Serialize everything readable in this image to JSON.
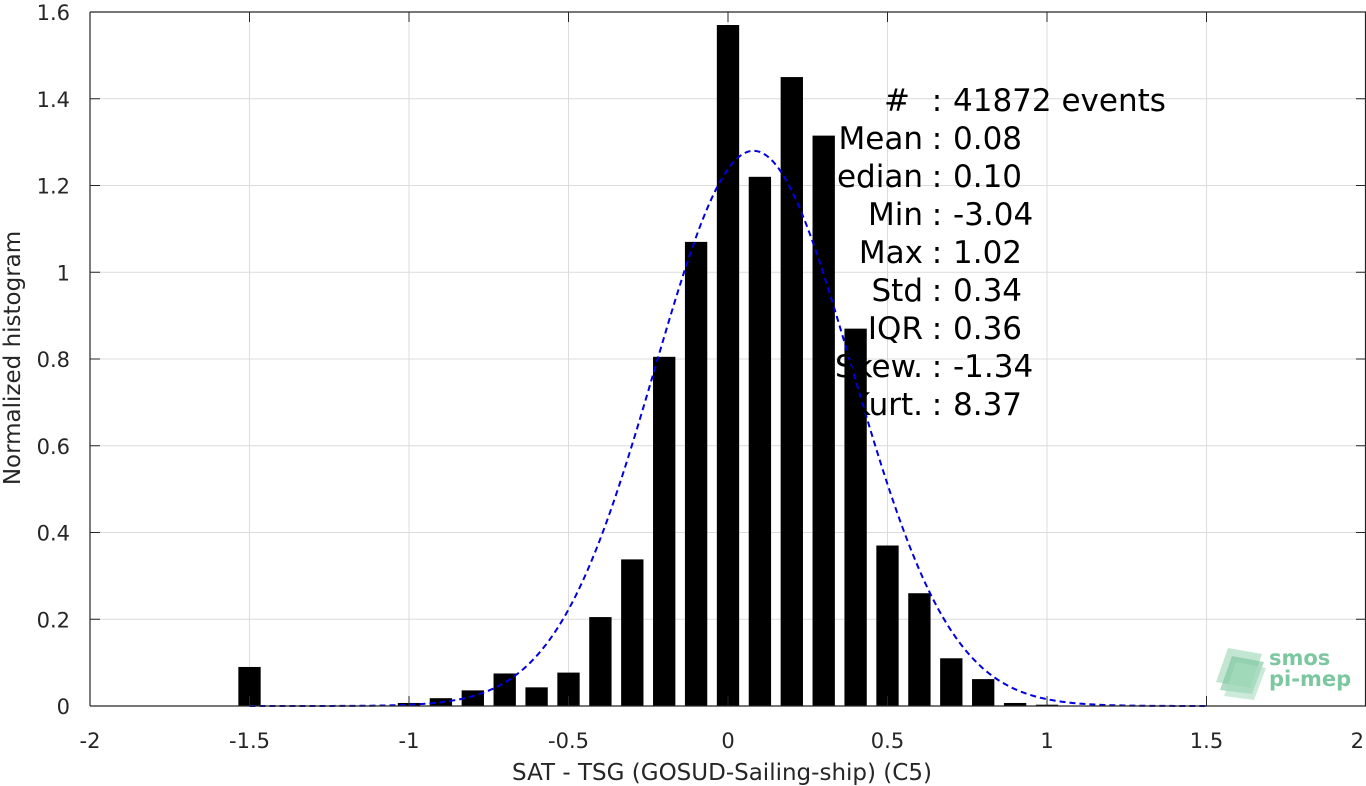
{
  "chart_data": {
    "type": "bar",
    "xlabel": "SAT - TSG (GOSUD-Sailing-ship) (C5)",
    "ylabel": "Normalized histogram",
    "xlim": [
      -2,
      2
    ],
    "ylim": [
      0,
      1.6
    ],
    "xticks": [
      -2,
      -1.5,
      -1,
      -0.5,
      0,
      0.5,
      1,
      1.5,
      2
    ],
    "xtick_labels": [
      "-2",
      "-1.5",
      "-1",
      "-0.5",
      "0",
      "0.5",
      "1",
      "1.5",
      "2"
    ],
    "yticks": [
      0,
      0.2,
      0.4,
      0.6,
      0.8,
      1,
      1.2,
      1.4,
      1.6
    ],
    "ytick_labels": [
      "0",
      "0.2",
      "0.4",
      "0.6",
      "0.8",
      "1",
      "1.2",
      "1.4",
      "1.6"
    ],
    "grid": true,
    "bin_width": 0.1,
    "bar_width": 0.07,
    "bars": [
      {
        "x": -1.5,
        "y": 0.09
      },
      {
        "x": -1.0,
        "y": 0.007
      },
      {
        "x": -0.9,
        "y": 0.018
      },
      {
        "x": -0.8,
        "y": 0.036
      },
      {
        "x": -0.7,
        "y": 0.075
      },
      {
        "x": -0.6,
        "y": 0.043
      },
      {
        "x": -0.5,
        "y": 0.077
      },
      {
        "x": -0.4,
        "y": 0.205
      },
      {
        "x": -0.3,
        "y": 0.338
      },
      {
        "x": -0.2,
        "y": 0.805
      },
      {
        "x": -0.1,
        "y": 1.07
      },
      {
        "x": 0.0,
        "y": 1.57
      },
      {
        "x": 0.1,
        "y": 1.22
      },
      {
        "x": 0.2,
        "y": 1.45
      },
      {
        "x": 0.3,
        "y": 1.315
      },
      {
        "x": 0.4,
        "y": 0.87
      },
      {
        "x": 0.5,
        "y": 0.37
      },
      {
        "x": 0.6,
        "y": 0.26
      },
      {
        "x": 0.7,
        "y": 0.11
      },
      {
        "x": 0.8,
        "y": 0.062
      },
      {
        "x": 0.9,
        "y": 0.007
      },
      {
        "x": 1.0,
        "y": 0.003
      }
    ],
    "fit_curve": {
      "type": "gaussian",
      "mean": 0.08,
      "std": 0.31,
      "peak": 1.28,
      "x_range": [
        -1.5,
        1.5
      ],
      "style": "dashed",
      "color": "#0000e0"
    },
    "bar_color": "#000000",
    "stats_box": {
      "placement": "top-right",
      "lines": [
        {
          "label": "#",
          "sep": ":",
          "value": "41872 events"
        },
        {
          "label": "Mean",
          "sep": ":",
          "value": "0.08"
        },
        {
          "label": "Median",
          "sep": ":",
          "value": "0.10"
        },
        {
          "label": "Min",
          "sep": ":",
          "value": "-3.04"
        },
        {
          "label": "Max",
          "sep": ":",
          "value": "1.02"
        },
        {
          "label": "Std",
          "sep": ":",
          "value": "0.34"
        },
        {
          "label": "IQR",
          "sep": ":",
          "value": "0.36"
        },
        {
          "label": "Skew.",
          "sep": ":",
          "value": "-1.34"
        },
        {
          "label": "Kurt.",
          "sep": ":",
          "value": "8.37"
        }
      ]
    }
  },
  "logo": {
    "line1": "smos",
    "line2": "pi-mep",
    "color": "#7cc7a0"
  }
}
